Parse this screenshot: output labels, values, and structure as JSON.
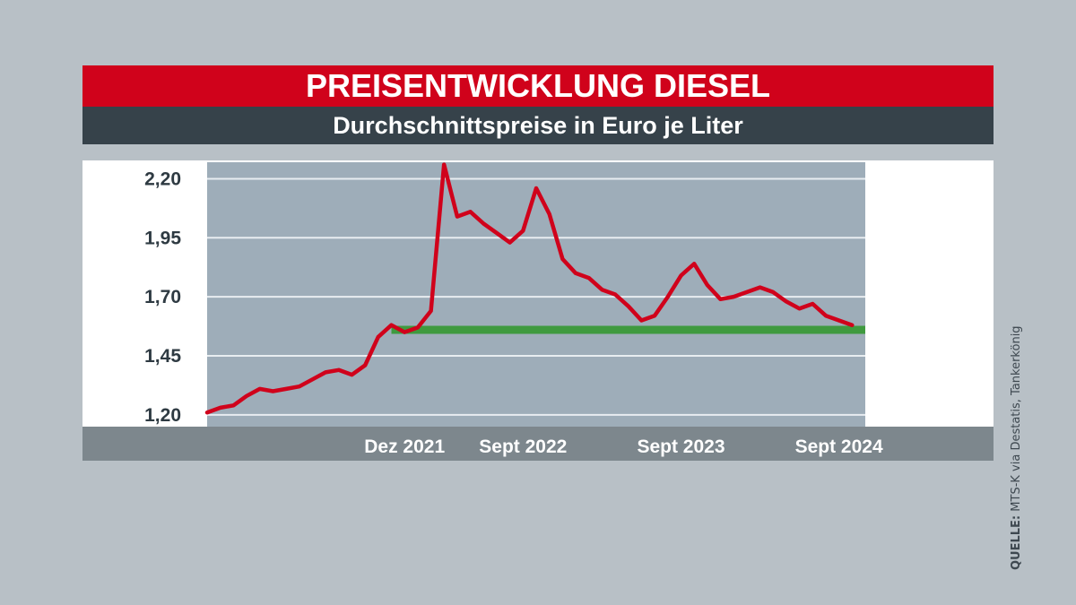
{
  "header": {
    "title": "PREISENTWICKLUNG DIESEL",
    "subtitle": "Durchschnittspreise in Euro je Liter"
  },
  "source": {
    "label": "QUELLE:",
    "text": "MTS-K via Destatis, Tankerkönig"
  },
  "colors": {
    "title_bar": "#d0021b",
    "subtitle_bar": "#36424a",
    "plot_background": "#9eadb9",
    "line": "#d0021b",
    "reference_line": "#3f9a3f",
    "axis_bar": "#7d878d"
  },
  "chart_data": {
    "type": "line",
    "title": "PREISENTWICKLUNG DIESEL",
    "subtitle": "Durchschnittspreise in Euro je Liter",
    "ylim": [
      1.15,
      2.27
    ],
    "yticks": [
      "2,20",
      "1,95",
      "1,70",
      "1,45",
      "1,20"
    ],
    "ytick_values": [
      2.2,
      1.95,
      1.7,
      1.45,
      1.2
    ],
    "xlim": [
      "2020-09",
      "2024-11"
    ],
    "xticks": [
      {
        "label": "Dez 2021",
        "x": "2021-12"
      },
      {
        "label": "Sept 2022",
        "x": "2022-09"
      },
      {
        "label": "Sept 2023",
        "x": "2023-09"
      },
      {
        "label": "Sept 2024",
        "x": "2024-09"
      }
    ],
    "grid": true,
    "reference_line": {
      "y": 1.56,
      "x_start": "2021-11",
      "x_end": "2024-11"
    },
    "series": [
      {
        "points": [
          [
            "2020-09",
            1.21
          ],
          [
            "2020-10",
            1.23
          ],
          [
            "2020-11",
            1.24
          ],
          [
            "2020-12",
            1.28
          ],
          [
            "2021-01",
            1.31
          ],
          [
            "2021-02",
            1.3
          ],
          [
            "2021-03",
            1.31
          ],
          [
            "2021-04",
            1.32
          ],
          [
            "2021-05",
            1.35
          ],
          [
            "2021-06",
            1.38
          ],
          [
            "2021-07",
            1.39
          ],
          [
            "2021-08",
            1.37
          ],
          [
            "2021-09",
            1.41
          ],
          [
            "2021-10",
            1.53
          ],
          [
            "2021-11",
            1.58
          ],
          [
            "2021-12",
            1.55
          ],
          [
            "2022-01",
            1.57
          ],
          [
            "2022-02",
            1.64
          ],
          [
            "2022-03",
            2.26
          ],
          [
            "2022-04",
            2.04
          ],
          [
            "2022-05",
            2.06
          ],
          [
            "2022-06",
            2.01
          ],
          [
            "2022-07",
            1.97
          ],
          [
            "2022-08",
            1.93
          ],
          [
            "2022-09",
            1.98
          ],
          [
            "2022-10",
            2.16
          ],
          [
            "2022-11",
            2.05
          ],
          [
            "2022-12",
            1.86
          ],
          [
            "2023-01",
            1.8
          ],
          [
            "2023-02",
            1.78
          ],
          [
            "2023-03",
            1.73
          ],
          [
            "2023-04",
            1.71
          ],
          [
            "2023-05",
            1.66
          ],
          [
            "2023-06",
            1.6
          ],
          [
            "2023-07",
            1.62
          ],
          [
            "2023-08",
            1.7
          ],
          [
            "2023-09",
            1.79
          ],
          [
            "2023-10",
            1.84
          ],
          [
            "2023-11",
            1.75
          ],
          [
            "2023-12",
            1.69
          ],
          [
            "2024-01",
            1.7
          ],
          [
            "2024-02",
            1.72
          ],
          [
            "2024-03",
            1.74
          ],
          [
            "2024-04",
            1.72
          ],
          [
            "2024-05",
            1.68
          ],
          [
            "2024-06",
            1.65
          ],
          [
            "2024-07",
            1.67
          ],
          [
            "2024-08",
            1.62
          ],
          [
            "2024-09",
            1.6
          ],
          [
            "2024-10",
            1.58
          ]
        ]
      }
    ]
  }
}
